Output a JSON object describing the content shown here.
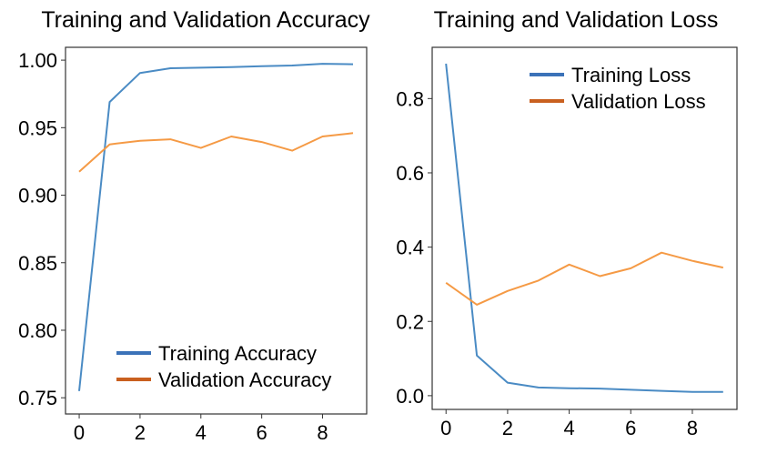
{
  "colors": {
    "training": "#4a8bc4",
    "validation": "#f59a45",
    "legend_training": "#3b72b8",
    "legend_validation": "#c9601f"
  },
  "chart_data": [
    {
      "type": "line",
      "title": "Training and Validation Accuracy",
      "xlabel": "",
      "ylabel": "",
      "x": [
        0,
        1,
        2,
        3,
        4,
        5,
        6,
        7,
        8,
        9
      ],
      "xlim": [
        -0.45,
        9.45
      ],
      "ylim": [
        0.738,
        1.0095
      ],
      "xticks": [
        0,
        2,
        4,
        6,
        8
      ],
      "xtick_labels": [
        "0",
        "2",
        "4",
        "6",
        "8"
      ],
      "yticks": [
        0.75,
        0.8,
        0.85,
        0.9,
        0.95,
        1.0
      ],
      "ytick_labels": [
        "0.75",
        "0.80",
        "0.85",
        "0.90",
        "0.95",
        "1.00"
      ],
      "legend_position": "lower-right",
      "grid": false,
      "series": [
        {
          "name": "Training Accuracy",
          "values": [
            0.755,
            0.969,
            0.9905,
            0.994,
            0.9944,
            0.9948,
            0.9955,
            0.996,
            0.9973,
            0.997
          ]
        },
        {
          "name": "Validation Accuracy",
          "values": [
            0.9174,
            0.9376,
            0.9403,
            0.9414,
            0.935,
            0.9435,
            0.9394,
            0.933,
            0.9435,
            0.946
          ]
        }
      ]
    },
    {
      "type": "line",
      "title": "Training and Validation Loss",
      "xlabel": "",
      "ylabel": "",
      "x": [
        0,
        1,
        2,
        3,
        4,
        5,
        6,
        7,
        8,
        9
      ],
      "xlim": [
        -0.45,
        9.45
      ],
      "ylim": [
        -0.037,
        0.938
      ],
      "xticks": [
        0,
        2,
        4,
        6,
        8
      ],
      "xtick_labels": [
        "0",
        "2",
        "4",
        "6",
        "8"
      ],
      "yticks": [
        0.0,
        0.2,
        0.4,
        0.6,
        0.8
      ],
      "ytick_labels": [
        "0.0",
        "0.2",
        "0.4",
        "0.6",
        "0.8"
      ],
      "legend_position": "upper-right",
      "grid": false,
      "series": [
        {
          "name": "Training Loss",
          "values": [
            0.894,
            0.108,
            0.035,
            0.022,
            0.02,
            0.019,
            0.016,
            0.013,
            0.01,
            0.01
          ]
        },
        {
          "name": "Validation Loss",
          "values": [
            0.304,
            0.245,
            0.282,
            0.31,
            0.353,
            0.322,
            0.343,
            0.385,
            0.363,
            0.345
          ]
        }
      ]
    }
  ]
}
